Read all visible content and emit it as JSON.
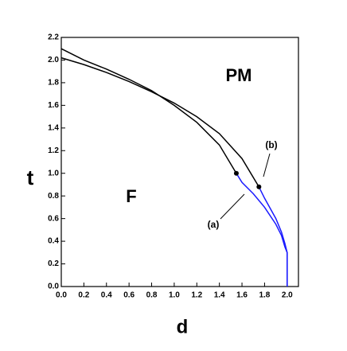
{
  "chart_data": {
    "type": "line",
    "xlabel": "d",
    "ylabel": "t",
    "xlim": [
      0,
      2.1
    ],
    "ylim": [
      0,
      2.2
    ],
    "xticks": [
      {
        "value": 0,
        "label": "0.0"
      },
      0.2,
      0.4,
      0.6,
      0.8,
      {
        "value": 1,
        "label": "1.0"
      },
      1.2,
      1.4,
      1.6,
      1.8,
      {
        "value": 2,
        "label": "2.0"
      }
    ],
    "yticks": [
      {
        "value": 0,
        "label": "0.0"
      },
      0.2,
      0.4,
      0.6,
      0.8,
      {
        "value": 1,
        "label": "1.0"
      },
      1.2,
      1.4,
      1.6,
      1.8,
      {
        "value": 2,
        "label": "2.0"
      },
      2.2
    ],
    "series": [
      {
        "color": "#000000",
        "x": [
          0,
          0.2,
          0.4,
          0.6,
          0.8,
          1.0,
          1.2,
          1.4,
          1.55
        ],
        "values": [
          2.1,
          2.0,
          1.92,
          1.83,
          1.73,
          1.6,
          1.45,
          1.25,
          1.0
        ]
      },
      {
        "color": "#000000",
        "x": [
          0,
          0.2,
          0.4,
          0.6,
          0.8,
          1.0,
          1.2,
          1.4,
          1.6,
          1.75
        ],
        "values": [
          2.02,
          1.96,
          1.89,
          1.81,
          1.72,
          1.62,
          1.5,
          1.35,
          1.13,
          0.88
        ]
      },
      {
        "color": "#1a1aff",
        "x": [
          1.55,
          1.6,
          1.7,
          1.8,
          1.9,
          1.95,
          1.98,
          2.0,
          2.0
        ],
        "values": [
          1.0,
          0.92,
          0.82,
          0.7,
          0.55,
          0.45,
          0.35,
          0.3,
          0
        ]
      },
      {
        "color": "#1a1aff",
        "x": [
          1.75,
          1.8,
          1.9,
          1.95,
          1.98,
          2.0,
          2.0
        ],
        "values": [
          0.88,
          0.78,
          0.6,
          0.48,
          0.38,
          0.3,
          0
        ]
      },
      {
        "color": "#000000",
        "marker": true,
        "x": [
          1.55,
          1.75
        ],
        "values": [
          1.0,
          0.88
        ]
      }
    ],
    "annotations": [
      "PM",
      "F",
      "(a)",
      "(b)"
    ]
  }
}
